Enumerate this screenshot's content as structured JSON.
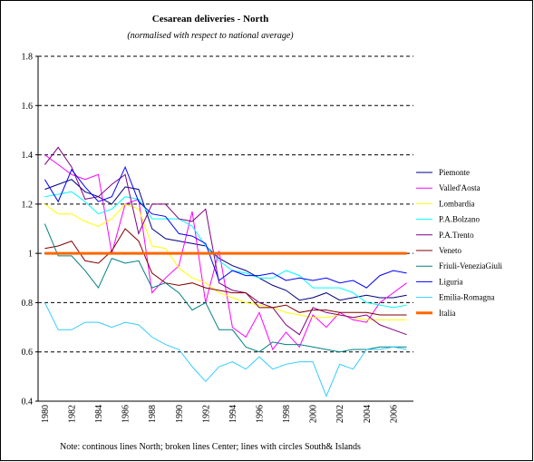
{
  "chart_data": {
    "type": "line",
    "title": "Cesarean deliveries - North",
    "subtitle": "(normalised with respect to national average)",
    "note": "Note: continous lines North; broken lines Center; lines with circles South& Islands",
    "categories": [
      "1980",
      null,
      "1982",
      null,
      "1984",
      null,
      "1986",
      null,
      "1988",
      null,
      "1990",
      null,
      "1992",
      null,
      "1994",
      null,
      "1996",
      null,
      "1998",
      null,
      "2000",
      null,
      "2002",
      null,
      "2004",
      null,
      "2006",
      null
    ],
    "ylim": [
      0.4,
      1.8
    ],
    "yticks": [
      0.4,
      0.6,
      0.8,
      1,
      1.2,
      1.4,
      1.6,
      1.8
    ],
    "grid": true,
    "legend": "right",
    "series": [
      {
        "name": "Piemonte",
        "color": "#000080",
        "values": [
          1.26,
          1.28,
          1.3,
          1.25,
          1.23,
          1.2,
          1.27,
          1.26,
          1.1,
          1.06,
          1.05,
          1.04,
          1.03,
          0.98,
          0.95,
          0.93,
          0.9,
          0.87,
          0.85,
          0.81,
          0.82,
          0.84,
          0.81,
          0.82,
          0.83,
          0.82,
          0.82,
          0.83
        ]
      },
      {
        "name": "Valled'Aosta",
        "color": "#ff00ff",
        "values": [
          1.4,
          1.36,
          1.32,
          1.3,
          1.32,
          1.0,
          1.2,
          1.22,
          0.84,
          0.9,
          0.95,
          1.17,
          0.8,
          1.01,
          0.7,
          0.66,
          0.76,
          0.61,
          0.68,
          0.62,
          0.75,
          0.7,
          0.76,
          0.73,
          0.72,
          0.8,
          0.84,
          0.88
        ]
      },
      {
        "name": "Lombardia",
        "color": "#ffff00",
        "values": [
          1.2,
          1.16,
          1.16,
          1.13,
          1.11,
          1.14,
          1.2,
          1.18,
          1.03,
          1.02,
          0.94,
          0.9,
          0.88,
          0.84,
          0.82,
          0.8,
          0.79,
          0.78,
          0.76,
          0.75,
          0.74,
          0.74,
          0.75,
          0.74,
          0.73,
          0.73,
          0.73,
          0.73
        ]
      },
      {
        "name": "P.A.Bolzano",
        "color": "#00ffff",
        "values": [
          1.23,
          1.24,
          1.25,
          1.21,
          1.16,
          1.18,
          1.23,
          1.22,
          1.14,
          1.14,
          1.14,
          1.11,
          1.03,
          0.97,
          0.93,
          0.92,
          0.9,
          0.9,
          0.93,
          0.91,
          0.86,
          0.86,
          0.86,
          0.84,
          0.8,
          0.79,
          0.78,
          0.79
        ]
      },
      {
        "name": "P.A.Trento",
        "color": "#800080",
        "values": [
          1.36,
          1.43,
          1.35,
          1.22,
          1.23,
          1.28,
          1.32,
          1.08,
          1.2,
          1.2,
          1.14,
          1.13,
          1.18,
          0.88,
          0.85,
          0.84,
          0.8,
          0.78,
          0.71,
          0.67,
          0.78,
          0.76,
          0.75,
          0.74,
          0.75,
          0.71,
          0.69,
          0.67
        ]
      },
      {
        "name": "Veneto",
        "color": "#800000",
        "values": [
          1.02,
          1.03,
          1.05,
          0.97,
          0.96,
          1.01,
          1.1,
          1.05,
          0.92,
          0.88,
          0.87,
          0.88,
          0.86,
          0.85,
          0.84,
          0.84,
          0.78,
          0.78,
          0.79,
          0.76,
          0.77,
          0.77,
          0.76,
          0.76,
          0.76,
          0.75,
          0.75,
          0.75
        ]
      },
      {
        "name": "Friuli-VeneziaGiuli",
        "color": "#008080",
        "values": [
          1.12,
          0.99,
          0.99,
          0.93,
          0.86,
          0.98,
          0.96,
          0.97,
          0.86,
          0.88,
          0.84,
          0.77,
          0.8,
          0.69,
          0.69,
          0.62,
          0.6,
          0.64,
          0.63,
          0.63,
          0.62,
          0.61,
          0.6,
          0.61,
          0.61,
          0.62,
          0.62,
          0.62
        ]
      },
      {
        "name": "Liguria",
        "color": "#0000ff",
        "values": [
          1.3,
          1.21,
          1.34,
          1.27,
          1.21,
          1.23,
          1.35,
          1.21,
          1.16,
          1.15,
          1.08,
          1.07,
          1.04,
          0.89,
          0.93,
          0.91,
          0.91,
          0.92,
          0.89,
          0.9,
          0.89,
          0.9,
          0.88,
          0.89,
          0.86,
          0.91,
          0.93,
          0.92
        ]
      },
      {
        "name": "Emilia-Romagna",
        "color": "#33ccff",
        "values": [
          0.8,
          0.69,
          0.69,
          0.72,
          0.72,
          0.7,
          0.72,
          0.71,
          0.66,
          0.63,
          0.61,
          0.54,
          0.48,
          0.54,
          0.56,
          0.53,
          0.58,
          0.53,
          0.55,
          0.56,
          0.56,
          0.42,
          0.55,
          0.53,
          0.61,
          0.61,
          0.62,
          0.61
        ]
      },
      {
        "name": "Italia",
        "color": "#ff6600",
        "width": 3,
        "values": [
          1,
          1,
          1,
          1,
          1,
          1,
          1,
          1,
          1,
          1,
          1,
          1,
          1,
          1,
          1,
          1,
          1,
          1,
          1,
          1,
          1,
          1,
          1,
          1,
          1,
          1,
          1,
          1
        ]
      }
    ]
  }
}
